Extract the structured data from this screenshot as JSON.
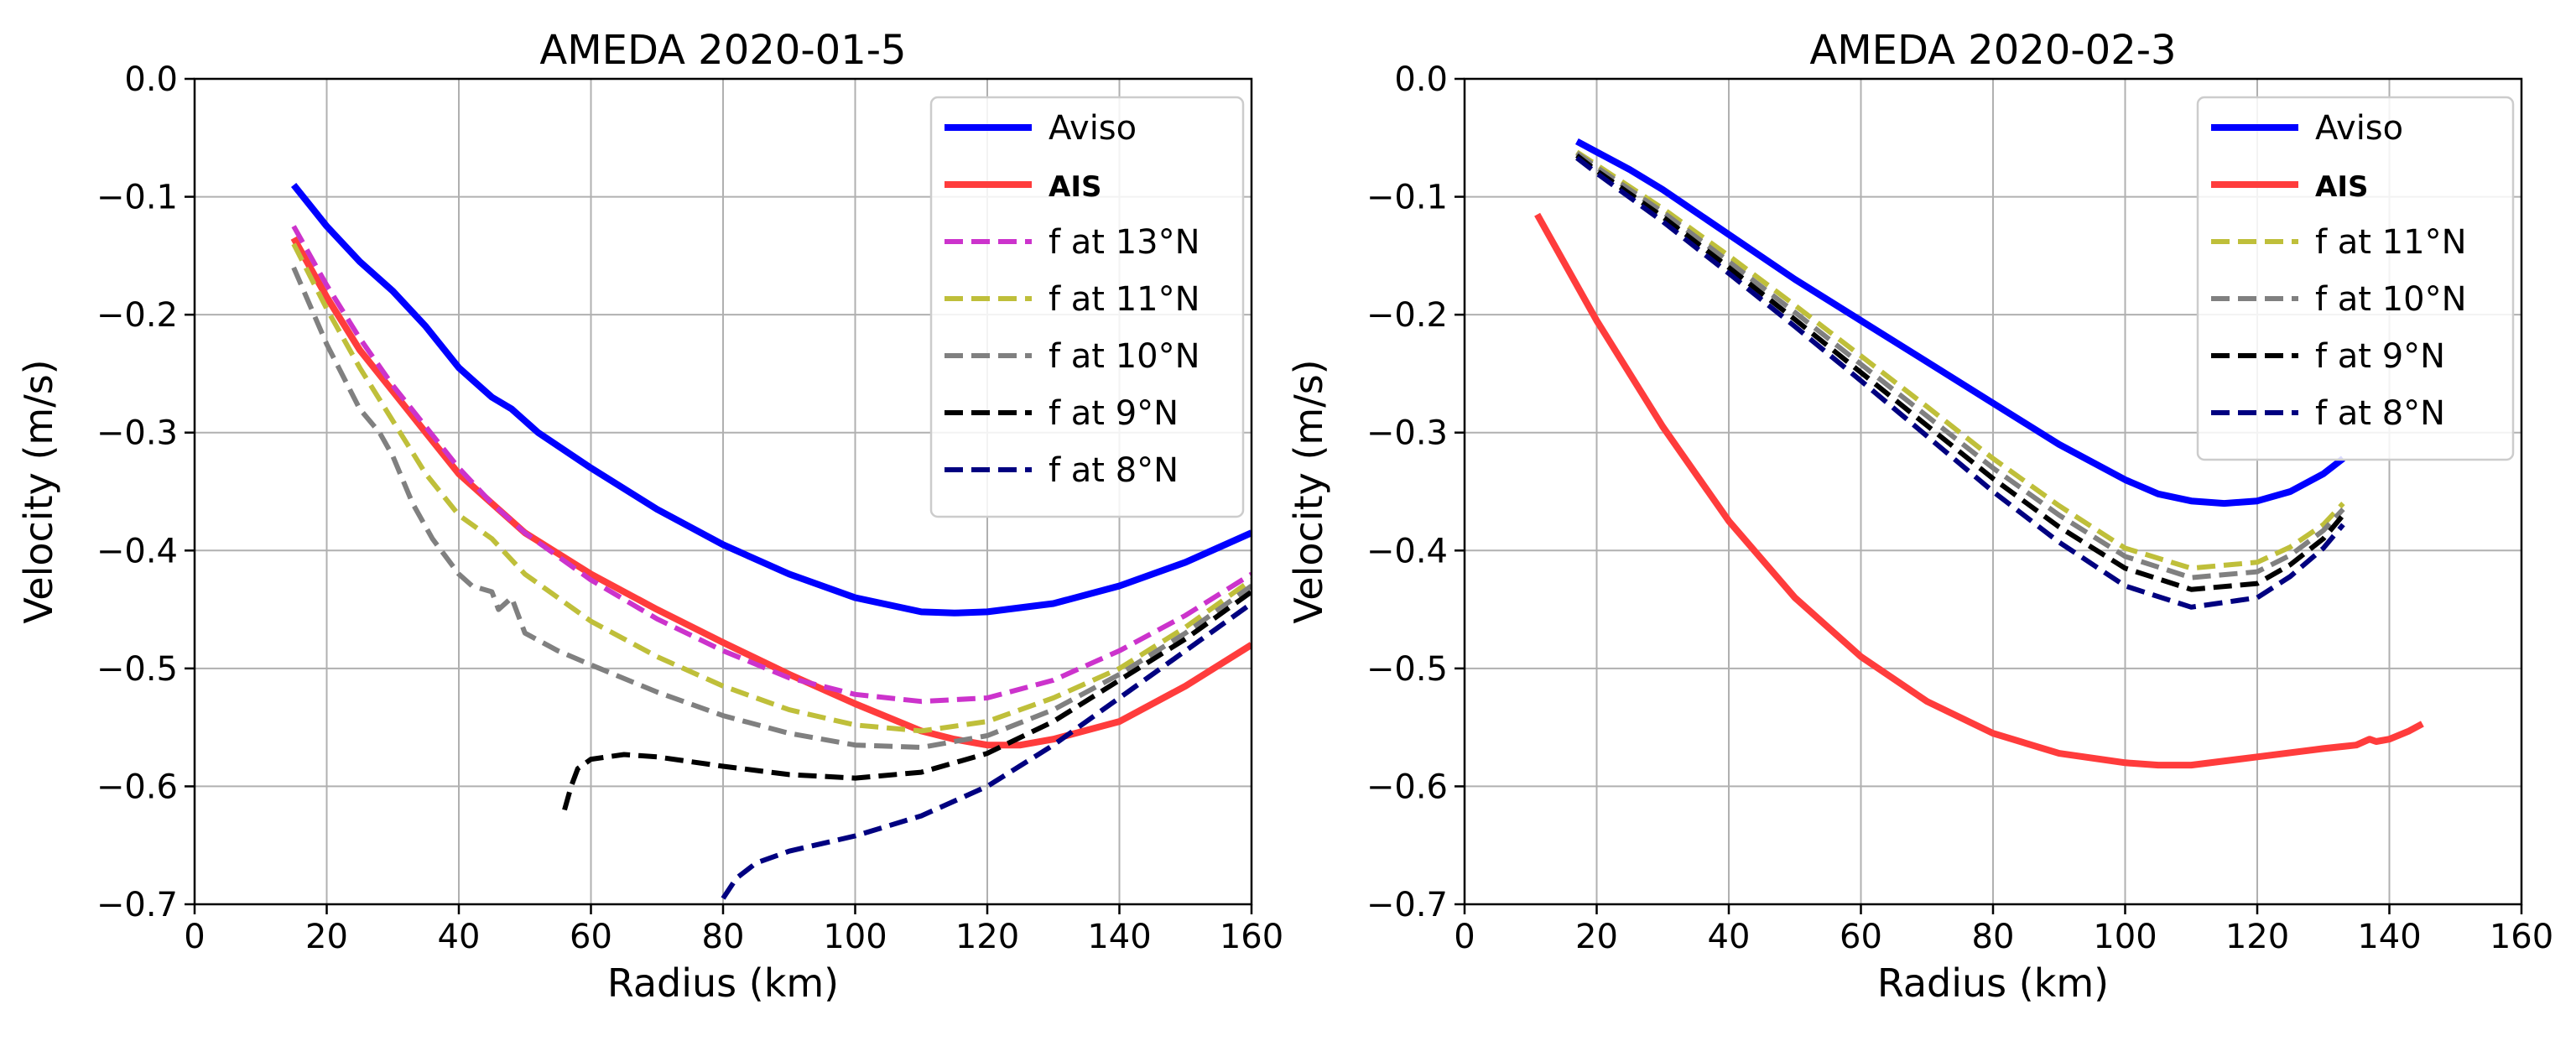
{
  "chart_data": [
    {
      "type": "line",
      "title": "AMEDA  2020-01-5",
      "xlabel": "Radius (km)",
      "ylabel": "Velocity (m/s)",
      "xlim": [
        0,
        160
      ],
      "ylim": [
        -0.7,
        0.0
      ],
      "xticks": [
        0,
        20,
        40,
        60,
        80,
        100,
        120,
        140,
        160
      ],
      "yticks": [
        0.0,
        -0.1,
        -0.2,
        -0.3,
        -0.4,
        -0.5,
        -0.6,
        -0.7
      ],
      "xtick_labels": [
        "0",
        "20",
        "40",
        "60",
        "80",
        "100",
        "120",
        "140",
        "160"
      ],
      "ytick_labels": [
        "0.0",
        "−0.1",
        "−0.2",
        "−0.3",
        "−0.4",
        "−0.5",
        "−0.6",
        "−0.7"
      ],
      "grid": true,
      "legend_position": "top-right",
      "series": [
        {
          "name": "Aviso",
          "color": "#0000ff",
          "style": "solid",
          "bold_label": false,
          "x": [
            15,
            20,
            25,
            30,
            35,
            40,
            42,
            45,
            48,
            50,
            52,
            60,
            70,
            80,
            90,
            100,
            110,
            115,
            120,
            130,
            140,
            150,
            160
          ],
          "y": [
            -0.09,
            -0.125,
            -0.155,
            -0.18,
            -0.21,
            -0.245,
            -0.255,
            -0.27,
            -0.28,
            -0.29,
            -0.3,
            -0.33,
            -0.365,
            -0.395,
            -0.42,
            -0.44,
            -0.452,
            -0.453,
            -0.452,
            -0.445,
            -0.43,
            -0.41,
            -0.385
          ]
        },
        {
          "name": "AIS",
          "color": "#ff3c3c",
          "style": "solid",
          "bold_label": true,
          "x": [
            15,
            20,
            25,
            30,
            35,
            40,
            45,
            48,
            50,
            60,
            70,
            80,
            90,
            100,
            110,
            115,
            120,
            125,
            130,
            140,
            150,
            160
          ],
          "y": [
            -0.135,
            -0.185,
            -0.23,
            -0.265,
            -0.3,
            -0.335,
            -0.36,
            -0.375,
            -0.385,
            -0.42,
            -0.45,
            -0.478,
            -0.505,
            -0.53,
            -0.553,
            -0.56,
            -0.565,
            -0.565,
            -0.56,
            -0.545,
            -0.515,
            -0.48
          ]
        },
        {
          "name": "f at 13°N",
          "color": "#cc33cc",
          "style": "dashed",
          "bold_label": false,
          "x": [
            15,
            20,
            25,
            30,
            35,
            40,
            45,
            50,
            60,
            70,
            80,
            90,
            100,
            110,
            120,
            130,
            140,
            150,
            160
          ],
          "y": [
            -0.125,
            -0.175,
            -0.22,
            -0.26,
            -0.295,
            -0.33,
            -0.36,
            -0.385,
            -0.425,
            -0.458,
            -0.485,
            -0.508,
            -0.522,
            -0.528,
            -0.525,
            -0.51,
            -0.485,
            -0.455,
            -0.42
          ]
        },
        {
          "name": "f at 11°N",
          "color": "#bfbf3a",
          "style": "dashed",
          "bold_label": false,
          "x": [
            15,
            20,
            25,
            30,
            35,
            40,
            45,
            50,
            60,
            70,
            80,
            90,
            100,
            110,
            120,
            130,
            140,
            150,
            160
          ],
          "y": [
            -0.14,
            -0.195,
            -0.245,
            -0.29,
            -0.335,
            -0.37,
            -0.39,
            -0.42,
            -0.46,
            -0.49,
            -0.515,
            -0.535,
            -0.548,
            -0.553,
            -0.545,
            -0.525,
            -0.5,
            -0.465,
            -0.425
          ]
        },
        {
          "name": "f at 10°N",
          "color": "#808080",
          "style": "dashed",
          "bold_label": false,
          "x": [
            15,
            20,
            25,
            28,
            30,
            33,
            36,
            40,
            42,
            45,
            46,
            48,
            50,
            55,
            60,
            70,
            80,
            90,
            100,
            110,
            120,
            130,
            140,
            150,
            160
          ],
          "y": [
            -0.16,
            -0.225,
            -0.28,
            -0.3,
            -0.32,
            -0.36,
            -0.39,
            -0.42,
            -0.43,
            -0.435,
            -0.45,
            -0.44,
            -0.47,
            -0.485,
            -0.497,
            -0.52,
            -0.54,
            -0.555,
            -0.565,
            -0.567,
            -0.557,
            -0.535,
            -0.505,
            -0.47,
            -0.43
          ]
        },
        {
          "name": "f at 9°N",
          "color": "#000000",
          "style": "dashed",
          "bold_label": false,
          "x": [
            56,
            57,
            58,
            60,
            65,
            70,
            80,
            90,
            100,
            110,
            120,
            130,
            140,
            150,
            160
          ],
          "y": [
            -0.62,
            -0.6,
            -0.585,
            -0.577,
            -0.573,
            -0.575,
            -0.583,
            -0.59,
            -0.593,
            -0.588,
            -0.572,
            -0.545,
            -0.51,
            -0.475,
            -0.435
          ]
        },
        {
          "name": "f at 8°N",
          "color": "#000080",
          "style": "dashed",
          "bold_label": false,
          "x": [
            80,
            82,
            85,
            90,
            100,
            110,
            120,
            130,
            140,
            150,
            160
          ],
          "y": [
            -0.695,
            -0.678,
            -0.665,
            -0.655,
            -0.642,
            -0.625,
            -0.6,
            -0.565,
            -0.525,
            -0.485,
            -0.445
          ]
        }
      ]
    },
    {
      "type": "line",
      "title": "AMEDA 2020-02-3",
      "xlabel": "Radius (km)",
      "ylabel": "Velocity (m/s)",
      "xlim": [
        0,
        160
      ],
      "ylim": [
        -0.7,
        0.0
      ],
      "xticks": [
        0,
        20,
        40,
        60,
        80,
        100,
        120,
        140,
        160
      ],
      "yticks": [
        0.0,
        -0.1,
        -0.2,
        -0.3,
        -0.4,
        -0.5,
        -0.6,
        -0.7
      ],
      "xtick_labels": [
        "0",
        "20",
        "40",
        "60",
        "80",
        "100",
        "120",
        "140",
        "160"
      ],
      "ytick_labels": [
        "0.0",
        "−0.1",
        "−0.2",
        "−0.3",
        "−0.4",
        "−0.5",
        "−0.6",
        "−0.7"
      ],
      "grid": true,
      "legend_position": "top-right",
      "series": [
        {
          "name": "Aviso",
          "color": "#0000ff",
          "style": "solid",
          "bold_label": false,
          "x": [
            17,
            20,
            25,
            30,
            40,
            50,
            60,
            70,
            80,
            90,
            100,
            105,
            110,
            115,
            120,
            125,
            130,
            133
          ],
          "y": [
            -0.053,
            -0.062,
            -0.077,
            -0.094,
            -0.132,
            -0.17,
            -0.205,
            -0.24,
            -0.275,
            -0.31,
            -0.34,
            -0.352,
            -0.358,
            -0.36,
            -0.358,
            -0.35,
            -0.335,
            -0.322
          ]
        },
        {
          "name": "AIS",
          "color": "#ff3c3c",
          "style": "solid",
          "bold_label": true,
          "x": [
            11,
            15,
            20,
            30,
            40,
            50,
            60,
            70,
            80,
            90,
            100,
            105,
            110,
            120,
            130,
            135,
            137,
            138,
            140,
            143,
            145
          ],
          "y": [
            -0.115,
            -0.155,
            -0.205,
            -0.295,
            -0.375,
            -0.44,
            -0.49,
            -0.528,
            -0.555,
            -0.572,
            -0.58,
            -0.582,
            -0.582,
            -0.575,
            -0.568,
            -0.565,
            -0.56,
            -0.562,
            -0.56,
            -0.553,
            -0.547
          ]
        },
        {
          "name": "f at 11°N",
          "color": "#bfbf3a",
          "style": "dashed",
          "bold_label": false,
          "x": [
            17,
            20,
            30,
            40,
            50,
            60,
            70,
            80,
            90,
            100,
            110,
            120,
            125,
            130,
            133
          ],
          "y": [
            -0.062,
            -0.073,
            -0.11,
            -0.15,
            -0.192,
            -0.235,
            -0.278,
            -0.322,
            -0.362,
            -0.398,
            -0.415,
            -0.41,
            -0.397,
            -0.378,
            -0.36
          ]
        },
        {
          "name": "f at 10°N",
          "color": "#808080",
          "style": "dashed",
          "bold_label": false,
          "x": [
            17,
            20,
            30,
            40,
            50,
            60,
            70,
            80,
            90,
            100,
            110,
            120,
            125,
            130,
            133
          ],
          "y": [
            -0.063,
            -0.075,
            -0.113,
            -0.155,
            -0.198,
            -0.242,
            -0.286,
            -0.33,
            -0.37,
            -0.405,
            -0.423,
            -0.418,
            -0.404,
            -0.383,
            -0.365
          ]
        },
        {
          "name": "f at 9°N",
          "color": "#000000",
          "style": "dashed",
          "bold_label": false,
          "x": [
            17,
            20,
            30,
            40,
            50,
            60,
            70,
            80,
            90,
            100,
            110,
            120,
            125,
            130,
            133
          ],
          "y": [
            -0.065,
            -0.078,
            -0.117,
            -0.16,
            -0.204,
            -0.249,
            -0.294,
            -0.339,
            -0.38,
            -0.415,
            -0.433,
            -0.428,
            -0.412,
            -0.39,
            -0.37
          ]
        },
        {
          "name": "f at 8°N",
          "color": "#000080",
          "style": "dashed",
          "bold_label": false,
          "x": [
            17,
            20,
            30,
            40,
            50,
            60,
            70,
            80,
            90,
            100,
            110,
            120,
            125,
            130,
            133
          ],
          "y": [
            -0.067,
            -0.08,
            -0.121,
            -0.165,
            -0.21,
            -0.256,
            -0.303,
            -0.35,
            -0.393,
            -0.43,
            -0.448,
            -0.44,
            -0.422,
            -0.398,
            -0.378
          ]
        }
      ]
    }
  ]
}
